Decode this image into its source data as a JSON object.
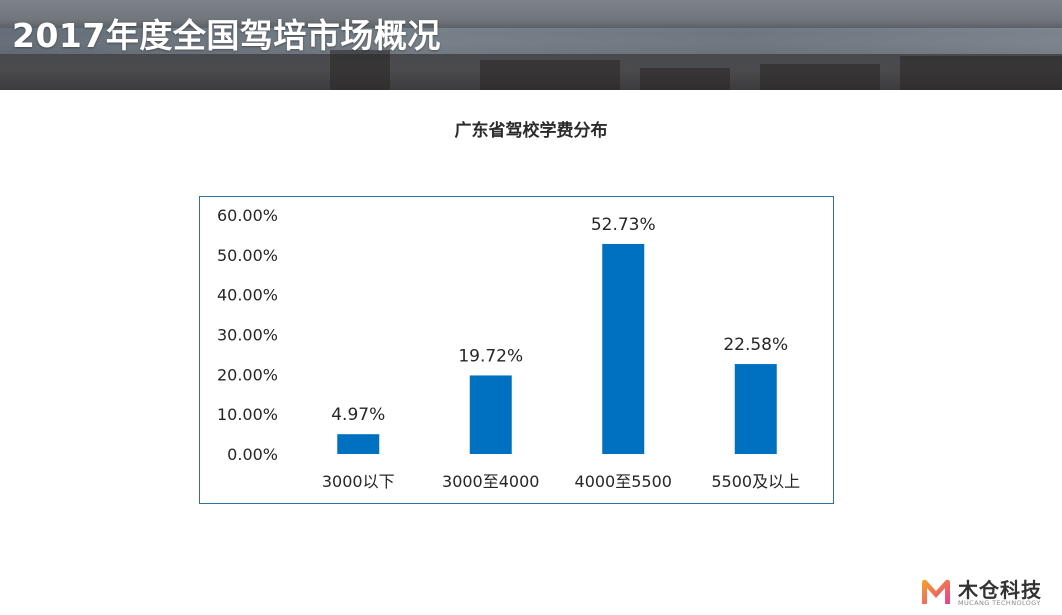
{
  "header": {
    "title": "2017年度全国驾培市场概况"
  },
  "chart_data": {
    "type": "bar",
    "title": "广东省驾校学费分布",
    "categories": [
      "3000以下",
      "3000至4000",
      "4000至5500",
      "5500及以上"
    ],
    "values": [
      4.97,
      19.72,
      52.73,
      22.58
    ],
    "value_labels": [
      "4.97%",
      "19.72%",
      "52.73%",
      "22.58%"
    ],
    "ylim": [
      0,
      60
    ],
    "yticks": [
      0,
      10,
      20,
      30,
      40,
      50,
      60
    ],
    "ytick_labels": [
      "0.00%",
      "10.00%",
      "20.00%",
      "30.00%",
      "40.00%",
      "50.00%",
      "60.00%"
    ],
    "xlabel": "",
    "ylabel": "",
    "grid": false,
    "legend": "none",
    "bar_color": "#0070c0"
  },
  "logo": {
    "name": "木仓科技",
    "subtitle": "MUCANG TECHNOLOGY",
    "colors": {
      "gradient_start": "#f5a623",
      "gradient_end": "#e83e8c"
    }
  }
}
